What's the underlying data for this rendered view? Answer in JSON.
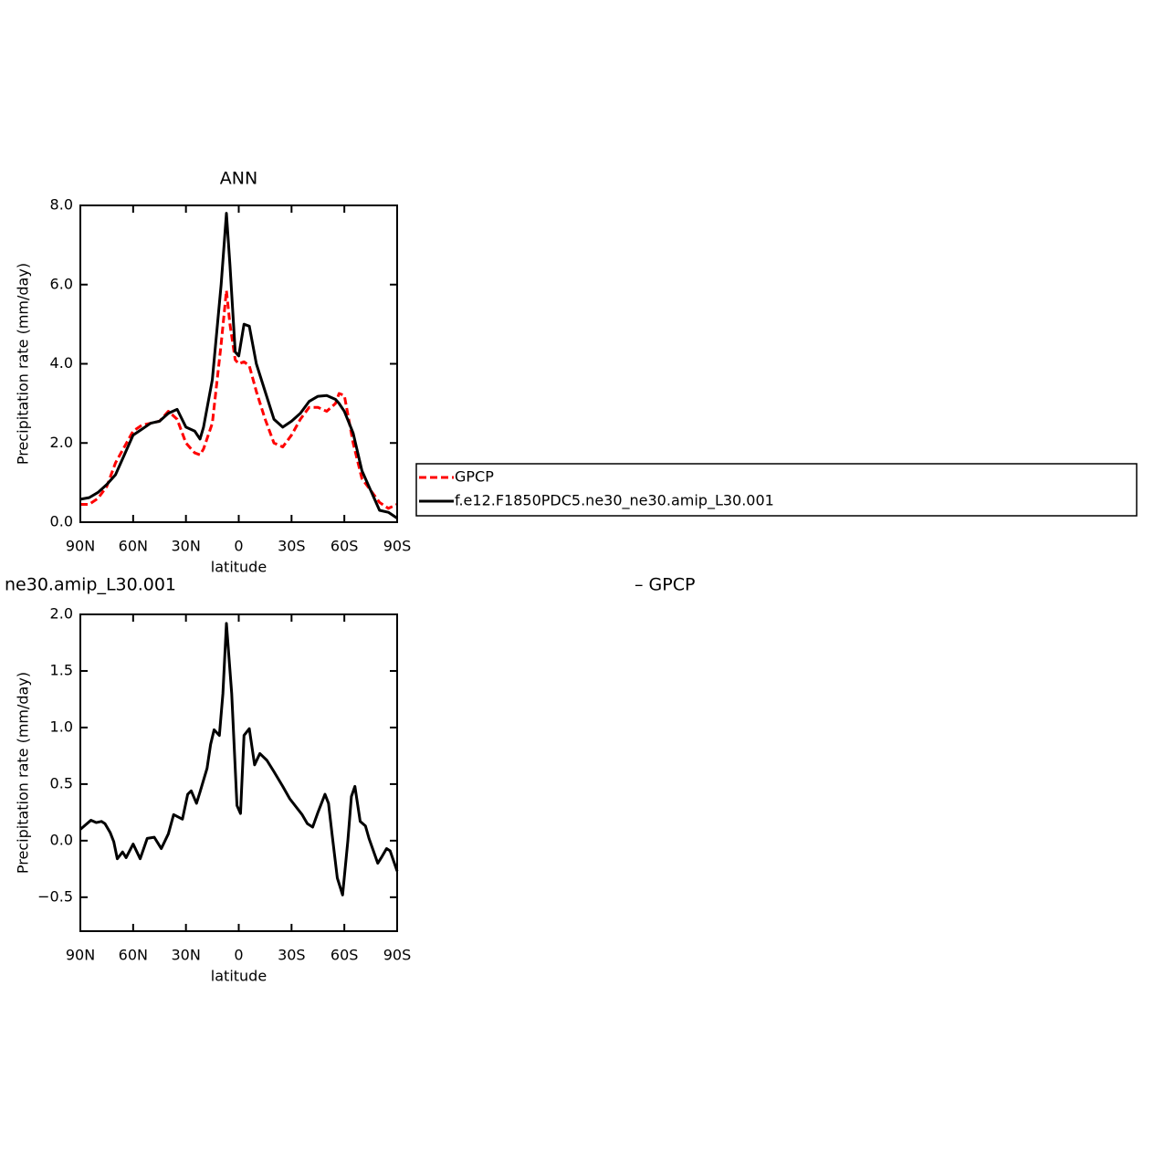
{
  "chart_data": [
    {
      "type": "line",
      "title": "ANN",
      "xlabel": "latitude",
      "ylabel": "Precipitation rate (mm/day)",
      "x": [
        90,
        85,
        80,
        75,
        70,
        65,
        60,
        55,
        50,
        45,
        40,
        35,
        30,
        25,
        22,
        20,
        15,
        10,
        7,
        5,
        2,
        0,
        -3,
        -6,
        -10,
        -15,
        -20,
        -25,
        -30,
        -35,
        -40,
        -45,
        -50,
        -55,
        -57,
        -60,
        -65,
        -70,
        -75,
        -80,
        -85,
        -90
      ],
      "series": [
        {
          "name": "GPCP",
          "color": "#ff0000",
          "dash": true,
          "values": [
            0.45,
            0.45,
            0.6,
            0.9,
            1.5,
            1.9,
            2.3,
            2.45,
            2.5,
            2.55,
            2.8,
            2.6,
            2.0,
            1.75,
            1.7,
            1.85,
            2.5,
            4.5,
            5.85,
            5.0,
            4.1,
            4.0,
            4.05,
            3.95,
            3.3,
            2.6,
            2.0,
            1.9,
            2.2,
            2.6,
            2.9,
            2.9,
            2.8,
            3.0,
            3.25,
            3.2,
            2.0,
            1.1,
            0.8,
            0.5,
            0.35,
            0.45
          ]
        },
        {
          "name": "f.e12.F1850PDC5.ne30_ne30.amip_L30.001",
          "color": "#000000",
          "dash": false,
          "values": [
            0.58,
            0.62,
            0.75,
            0.95,
            1.2,
            1.7,
            2.2,
            2.35,
            2.5,
            2.55,
            2.75,
            2.85,
            2.4,
            2.3,
            2.1,
            2.4,
            3.6,
            6.0,
            7.8,
            6.5,
            4.3,
            4.2,
            5.0,
            4.95,
            4.0,
            3.3,
            2.6,
            2.4,
            2.55,
            2.75,
            3.05,
            3.18,
            3.2,
            3.1,
            3.0,
            2.8,
            2.25,
            1.3,
            0.8,
            0.3,
            0.25,
            0.1
          ]
        }
      ],
      "xlim": [
        90,
        -90
      ],
      "xticks": [
        {
          "value": 90,
          "label": "90N"
        },
        {
          "value": 60,
          "label": "60N"
        },
        {
          "value": 30,
          "label": "30N"
        },
        0,
        {
          "value": -30,
          "label": "30S"
        },
        {
          "value": -60,
          "label": "60S"
        },
        {
          "value": -90,
          "label": "90S"
        }
      ],
      "ylim": [
        0,
        8
      ],
      "yticks": [
        {
          "value": 0,
          "label": "0.0"
        },
        {
          "value": 2,
          "label": "2.0"
        },
        {
          "value": 4,
          "label": "4.0"
        },
        {
          "value": 6,
          "label": "6.0"
        },
        {
          "value": 8,
          "label": "8.0"
        }
      ],
      "legend": "right"
    },
    {
      "type": "line",
      "title_left": "ne30.amip_L30.001",
      "title_right": "– GPCP",
      "xlabel": "latitude",
      "ylabel": "Precipitation rate (mm/day)",
      "x": [
        90,
        87,
        84,
        81,
        78,
        76,
        73,
        71,
        69,
        66,
        64,
        60,
        56,
        52,
        48,
        44,
        40,
        37,
        32,
        29,
        27,
        24,
        22,
        18,
        16,
        14,
        11,
        9,
        7,
        4,
        1,
        -1,
        -3,
        -6,
        -9,
        -12,
        -16,
        -20,
        -25,
        -29,
        -36,
        -39,
        -42,
        -45,
        -49,
        -51,
        -53,
        -56,
        -59,
        -62,
        -64,
        -66,
        -69,
        -72,
        -74,
        -79,
        -81,
        -84,
        -86,
        -90
      ],
      "series": [
        {
          "color": "#000000",
          "dash": false,
          "values": [
            0.1,
            0.14,
            0.18,
            0.16,
            0.17,
            0.15,
            0.07,
            -0.01,
            -0.16,
            -0.1,
            -0.15,
            -0.03,
            -0.16,
            0.02,
            0.03,
            -0.07,
            0.06,
            0.23,
            0.19,
            0.41,
            0.44,
            0.33,
            0.43,
            0.64,
            0.85,
            0.98,
            0.93,
            1.3,
            1.92,
            1.3,
            0.31,
            0.24,
            0.93,
            0.99,
            0.67,
            0.77,
            0.71,
            0.61,
            0.48,
            0.37,
            0.23,
            0.15,
            0.12,
            0.25,
            0.41,
            0.33,
            0.06,
            -0.33,
            -0.48,
            0.0,
            0.39,
            0.48,
            0.17,
            0.13,
            0.02,
            -0.2,
            -0.15,
            -0.07,
            -0.09,
            -0.27
          ]
        }
      ],
      "xlim": [
        90,
        -90
      ],
      "xticks": [
        {
          "value": 90,
          "label": "90N"
        },
        {
          "value": 60,
          "label": "60N"
        },
        {
          "value": 30,
          "label": "30N"
        },
        0,
        {
          "value": -30,
          "label": "30S"
        },
        {
          "value": -60,
          "label": "60S"
        },
        {
          "value": -90,
          "label": "90S"
        }
      ],
      "ylim": [
        -0.8,
        2.0
      ],
      "yticks": [
        {
          "value": -0.5,
          "label": "−0.5"
        },
        {
          "value": 0,
          "label": "0.0"
        },
        {
          "value": 0.5,
          "label": "0.5"
        },
        {
          "value": 1,
          "label": "1.0"
        },
        {
          "value": 1.5,
          "label": "1.5"
        },
        {
          "value": 2,
          "label": "2.0"
        }
      ]
    }
  ]
}
